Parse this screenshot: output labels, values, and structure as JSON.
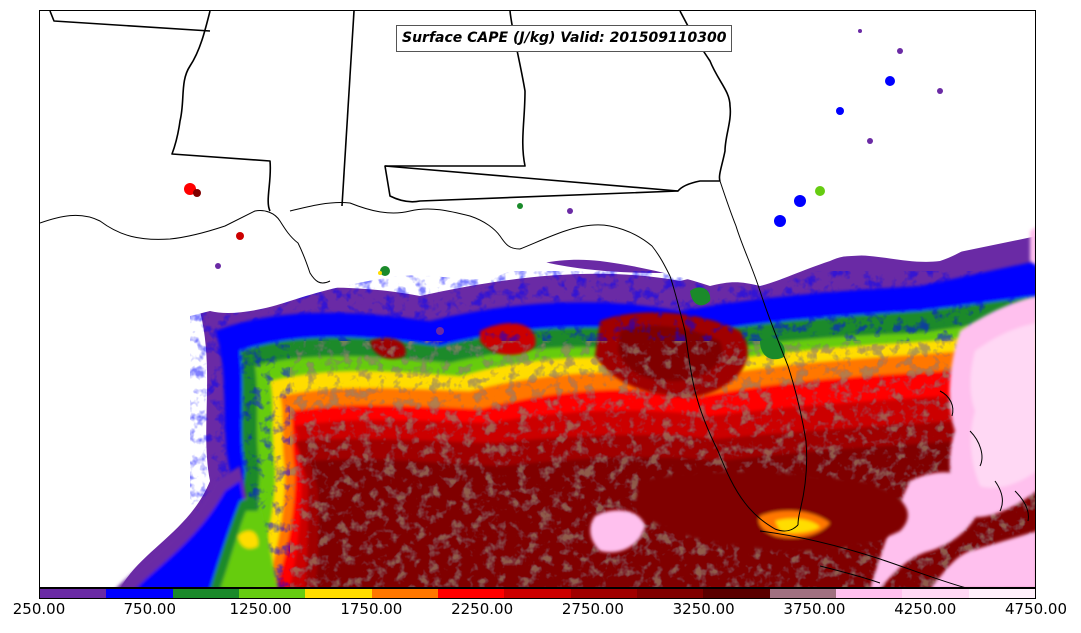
{
  "title": "Surface CAPE (J/kg) Valid: 201509110300",
  "colorbar": {
    "colors": [
      "#6a2aa5",
      "#0000ff",
      "#1a8a2a",
      "#66cc11",
      "#ffdd00",
      "#ff7700",
      "#ff0000",
      "#cc0000",
      "#a00000",
      "#800000",
      "#5a0000",
      "#a07080",
      "#ffc0ee",
      "#ffd8f4",
      "#fff0fb"
    ],
    "labels": [
      "250.00",
      "750.00",
      "1250.00",
      "1750.00",
      "2250.00",
      "2750.00",
      "3250.00",
      "3750.00",
      "4250.00",
      "4750.00"
    ]
  }
}
